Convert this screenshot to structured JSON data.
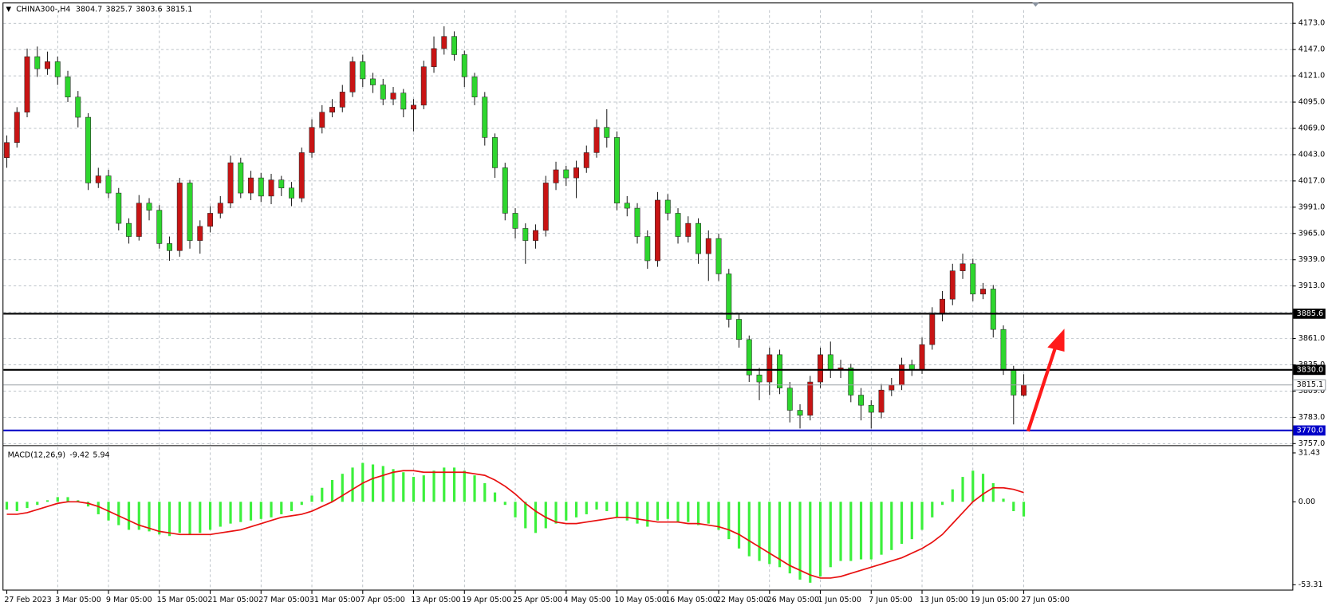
{
  "chart_data": [
    {
      "type": "candlestick",
      "title": "CHINA300-,H4",
      "categories": [
        "27 Feb 2023",
        null,
        null,
        null,
        null,
        "3 Mar 05:00",
        null,
        null,
        null,
        null,
        "9 Mar 05:00",
        null,
        null,
        null,
        null,
        "15 Mar 05:00",
        null,
        null,
        null,
        null,
        "21 Mar 05:00",
        null,
        null,
        null,
        null,
        "27 Mar 05:00",
        null,
        null,
        null,
        null,
        "31 Mar 05:00",
        null,
        null,
        null,
        null,
        "7 Apr 05:00",
        null,
        null,
        null,
        null,
        "13 Apr 05:00",
        null,
        null,
        null,
        null,
        "19 Apr 05:00",
        null,
        null,
        null,
        null,
        "25 Apr 05:00",
        null,
        null,
        null,
        null,
        "4 May 05:00",
        null,
        null,
        null,
        null,
        "10 May 05:00",
        null,
        null,
        null,
        null,
        "16 May 05:00",
        null,
        null,
        null,
        null,
        "22 May 05:00",
        null,
        null,
        null,
        null,
        "26 May 05:00",
        null,
        null,
        null,
        null,
        "1 Jun 05:00",
        null,
        null,
        null,
        null,
        "7 Jun 05:00",
        null,
        null,
        null,
        null,
        "13 Jun 05:00",
        null,
        null,
        null,
        null,
        "19 Jun 05:00",
        null,
        null,
        null,
        null,
        "27 Jun 05:00"
      ],
      "open": [
        4040,
        4055,
        4085,
        4140,
        4128,
        4135,
        4120,
        4100,
        4080,
        4015,
        4022,
        4005,
        3975,
        3962,
        3995,
        3988,
        3955,
        3948,
        4015,
        3958,
        3972,
        3985,
        3995,
        4035,
        4005,
        4020,
        4002,
        4018,
        4010,
        4000,
        4045,
        4070,
        4085,
        4090,
        4105,
        4135,
        4118,
        4112,
        4098,
        4104,
        4088,
        4092,
        4130,
        4148,
        4160,
        4142,
        4120,
        4100,
        4060,
        4030,
        3985,
        3970,
        3958,
        3968,
        4015,
        4028,
        4020,
        4030,
        4045,
        4070,
        4060,
        3995,
        3990,
        3962,
        3938,
        3998,
        3985,
        3962,
        3975,
        3945,
        3960,
        3925,
        3880,
        3860,
        3825,
        3818,
        3845,
        3812,
        3790,
        3785,
        3818,
        3845,
        3830,
        3832,
        3805,
        3795,
        3788,
        3810,
        3815,
        3835,
        3830,
        3855,
        3885,
        3900,
        3928,
        3935,
        3905,
        3910,
        3870,
        3830,
        3804.7
      ],
      "high": [
        4062,
        4090,
        4148,
        4150,
        4145,
        4140,
        4126,
        4106,
        4084,
        4030,
        4028,
        4010,
        3980,
        4003,
        4000,
        3993,
        3962,
        4020,
        4018,
        3978,
        3992,
        4002,
        4042,
        4040,
        4027,
        4025,
        4024,
        4022,
        4016,
        4050,
        4078,
        4092,
        4098,
        4112,
        4140,
        4142,
        4124,
        4118,
        4110,
        4108,
        4098,
        4136,
        4160,
        4170,
        4165,
        4146,
        4124,
        4105,
        4064,
        4035,
        3990,
        3975,
        3974,
        4022,
        4036,
        4032,
        4037,
        4052,
        4078,
        4088,
        4066,
        4002,
        3995,
        3968,
        4006,
        4004,
        3990,
        3982,
        3980,
        3968,
        3965,
        3930,
        3886,
        3864,
        3832,
        3852,
        3850,
        3818,
        3796,
        3824,
        3852,
        3858,
        3840,
        3836,
        3812,
        3800,
        3816,
        3822,
        3842,
        3840,
        3862,
        3892,
        3908,
        3935,
        3945,
        3940,
        3916,
        3914,
        3874,
        3834,
        3825.7
      ],
      "low": [
        4030,
        4050,
        4080,
        4120,
        4122,
        4112,
        4095,
        4070,
        4008,
        4010,
        4000,
        3968,
        3955,
        3958,
        3978,
        3950,
        3938,
        3942,
        3950,
        3945,
        3966,
        3980,
        3990,
        4000,
        3998,
        3996,
        3994,
        4002,
        3992,
        3996,
        4040,
        4064,
        4080,
        4085,
        4100,
        4110,
        4104,
        4092,
        4092,
        4080,
        4066,
        4088,
        4124,
        4142,
        4136,
        4110,
        4092,
        4052,
        4020,
        3978,
        3960,
        3935,
        3950,
        3962,
        4008,
        4012,
        4000,
        4025,
        4040,
        4050,
        3988,
        3982,
        3955,
        3930,
        3932,
        3978,
        3955,
        3956,
        3935,
        3918,
        3918,
        3872,
        3852,
        3818,
        3800,
        3805,
        3806,
        3778,
        3772,
        3780,
        3812,
        3822,
        3822,
        3798,
        3780,
        3772,
        3782,
        3804,
        3810,
        3824,
        3826,
        3850,
        3878,
        3894,
        3920,
        3898,
        3900,
        3862,
        3825,
        3776,
        3803.6
      ],
      "close": [
        4055,
        4085,
        4140,
        4128,
        4135,
        4120,
        4100,
        4080,
        4015,
        4022,
        4005,
        3975,
        3962,
        3995,
        3988,
        3955,
        3948,
        4015,
        3958,
        3972,
        3985,
        3995,
        4035,
        4005,
        4020,
        4002,
        4018,
        4010,
        4000,
        4045,
        4070,
        4085,
        4090,
        4105,
        4135,
        4118,
        4112,
        4098,
        4104,
        4088,
        4092,
        4130,
        4148,
        4160,
        4142,
        4120,
        4100,
        4060,
        4030,
        3985,
        3970,
        3958,
        3968,
        4015,
        4028,
        4020,
        4030,
        4045,
        4070,
        4060,
        3995,
        3990,
        3962,
        3938,
        3998,
        3985,
        3962,
        3975,
        3945,
        3960,
        3925,
        3880,
        3860,
        3825,
        3818,
        3845,
        3812,
        3790,
        3785,
        3818,
        3845,
        3830,
        3832,
        3805,
        3795,
        3788,
        3810,
        3815,
        3835,
        3830,
        3855,
        3885,
        3900,
        3928,
        3935,
        3905,
        3910,
        3870,
        3830,
        3805,
        3815.1
      ],
      "up_color": "#c81414",
      "down_color": "#2ed62e",
      "wick_color": "#202020",
      "ylim": [
        3755,
        4186
      ],
      "yticks": [
        {
          "value": 4173,
          "label": "4173.0"
        },
        {
          "value": 4147,
          "label": "4147.0"
        },
        {
          "value": 4121,
          "label": "4121.0"
        },
        {
          "value": 4095,
          "label": "4095.0"
        },
        {
          "value": 4069,
          "label": "4069.0"
        },
        {
          "value": 4043,
          "label": "4043.0"
        },
        {
          "value": 4017,
          "label": "4017.0"
        },
        {
          "value": 3991,
          "label": "3991.0"
        },
        {
          "value": 3965,
          "label": "3965.0"
        },
        {
          "value": 3939,
          "label": "3939.0"
        },
        {
          "value": 3913,
          "label": "3913.0"
        },
        {
          "value": 3887,
          "label": "3887.0"
        },
        {
          "value": 3861,
          "label": "3861.0"
        },
        {
          "value": 3835,
          "label": "3835.0"
        },
        {
          "value": 3809,
          "label": "3809.0"
        },
        {
          "value": 3783,
          "label": "3783.0"
        },
        {
          "value": 3757,
          "label": "3757.0"
        }
      ],
      "grid": true,
      "levels": [
        {
          "value": 3885.6,
          "label": "3885.6",
          "color": "#000000"
        },
        {
          "value": 3830,
          "label": "3830.0",
          "color": "#000000"
        },
        {
          "value": 3770,
          "label": "3770.0",
          "color": "#0000c8"
        }
      ]
    },
    {
      "type": "macd",
      "title": "MACD(12,26,9)",
      "histogram": {
        "color": "#3cf03c",
        "values": [
          -5,
          -6,
          -4,
          -2,
          1,
          3,
          3,
          1,
          -3,
          -8,
          -12,
          -15,
          -18,
          -18,
          -19,
          -21,
          -22,
          -20,
          -21,
          -20,
          -18,
          -16,
          -14,
          -13,
          -12,
          -11,
          -10,
          -8,
          -6,
          -2,
          4,
          9,
          14,
          18,
          22,
          25,
          24,
          23,
          21,
          19,
          16,
          17,
          20,
          22,
          22,
          20,
          17,
          12,
          6,
          -2,
          -10,
          -17,
          -20,
          -17,
          -14,
          -12,
          -10,
          -8,
          -5,
          -6,
          -10,
          -12,
          -14,
          -16,
          -12,
          -11,
          -13,
          -13,
          -15,
          -14,
          -18,
          -24,
          -30,
          -35,
          -38,
          -40,
          -42,
          -46,
          -50,
          -52,
          -48,
          -42,
          -38,
          -38,
          -37,
          -37,
          -34,
          -31,
          -27,
          -24,
          -18,
          -10,
          -2,
          8,
          16,
          20,
          18,
          12,
          2,
          -6,
          -9.42
        ]
      },
      "signal": {
        "color": "#e81010",
        "values": [
          -8,
          -8,
          -7,
          -5,
          -3,
          -1,
          0,
          0,
          -1,
          -3,
          -6,
          -9,
          -12,
          -15,
          -17,
          -19,
          -20,
          -21,
          -21,
          -21,
          -21,
          -20,
          -19,
          -18,
          -16,
          -14,
          -12,
          -10,
          -9,
          -8,
          -6,
          -3,
          0,
          4,
          8,
          12,
          15,
          17,
          19,
          20,
          20,
          19,
          19,
          19,
          19,
          19,
          18,
          17,
          14,
          10,
          5,
          -1,
          -6,
          -10,
          -13,
          -14,
          -14,
          -13,
          -12,
          -11,
          -10,
          -10,
          -11,
          -12,
          -13,
          -13,
          -13,
          -14,
          -14,
          -15,
          -16,
          -18,
          -21,
          -25,
          -29,
          -33,
          -37,
          -41,
          -44,
          -47,
          -49,
          -49,
          -48,
          -46,
          -44,
          -42,
          -40,
          -38,
          -36,
          -33,
          -30,
          -26,
          -21,
          -14,
          -7,
          0,
          5,
          9,
          9,
          8,
          5.94
        ]
      },
      "ylim": [
        -57,
        35
      ],
      "yticks": [
        31.43,
        {
          "value": 0,
          "label": "0.00"
        },
        -53.31
      ],
      "grid": true
    }
  ]
}
